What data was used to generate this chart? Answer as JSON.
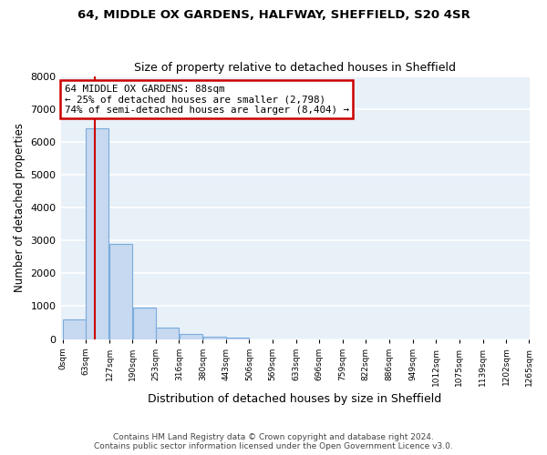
{
  "title1": "64, MIDDLE OX GARDENS, HALFWAY, SHEFFIELD, S20 4SR",
  "title2": "Size of property relative to detached houses in Sheffield",
  "xlabel": "Distribution of detached houses by size in Sheffield",
  "ylabel": "Number of detached properties",
  "footer1": "Contains HM Land Registry data © Crown copyright and database right 2024.",
  "footer2": "Contains public sector information licensed under the Open Government Licence v3.0.",
  "annotation_line1": "64 MIDDLE OX GARDENS: 88sqm",
  "annotation_line2": "← 25% of detached houses are smaller (2,798)",
  "annotation_line3": "74% of semi-detached houses are larger (8,404) →",
  "property_size": 88,
  "bin_width": 63,
  "bin_starts": [
    0,
    63,
    127,
    190,
    253,
    316,
    380,
    443,
    506,
    569,
    633,
    696,
    759,
    822,
    886,
    949,
    1012,
    1075,
    1139,
    1202
  ],
  "bar_values": [
    600,
    6400,
    2900,
    950,
    350,
    150,
    70,
    50,
    0,
    0,
    0,
    0,
    0,
    0,
    0,
    0,
    0,
    0,
    0,
    0
  ],
  "bar_color": "#c6d9f0",
  "bar_edge_color": "#7aabdc",
  "vline_color": "#cc0000",
  "annotation_box_edgecolor": "#cc0000",
  "background_color": "#e8f0f8",
  "grid_color": "#ffffff",
  "ylim": [
    0,
    8000
  ],
  "yticks": [
    0,
    1000,
    2000,
    3000,
    4000,
    5000,
    6000,
    7000,
    8000
  ],
  "tick_labels": [
    "0sqm",
    "63sqm",
    "127sqm",
    "190sqm",
    "253sqm",
    "316sqm",
    "380sqm",
    "443sqm",
    "506sqm",
    "569sqm",
    "633sqm",
    "696sqm",
    "759sqm",
    "822sqm",
    "886sqm",
    "949sqm",
    "1012sqm",
    "1075sqm",
    "1139sqm",
    "1202sqm",
    "1265sqm"
  ]
}
